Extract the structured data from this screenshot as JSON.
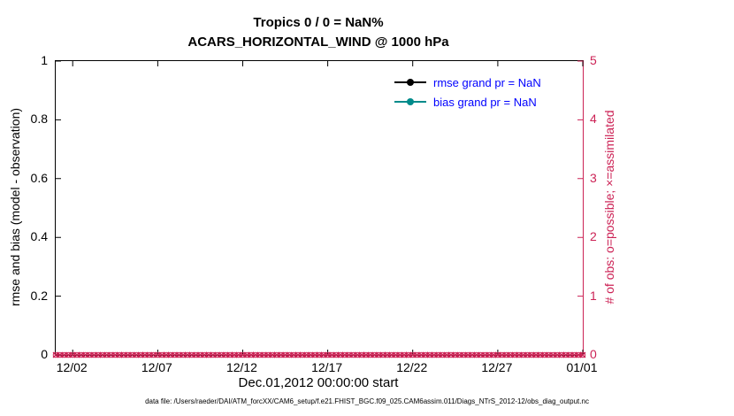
{
  "figure": {
    "title_line1": "Tropics 0 / 0 = NaN%",
    "title_line2": "ACARS_HORIZONTAL_WIND @ 1000 hPa",
    "xlabel": "Dec.01,2012 00:00:00 start",
    "ylabel_left": "rmse and bias (model - observation)",
    "ylabel_right": "# of obs: o=possible; ×=assimilated",
    "caption": "data file: /Users/raeder/DAI/ATM_forcXX/CAM6_setup/f.e21.FHIST_BGC.f09_025.CAM6assim.011/Diags_NTrS_2012-12/obs_diag_output.nc"
  },
  "colors": {
    "magenta": "#cc2255",
    "teal": "#008b8b",
    "black": "#000000",
    "legend_text": "#0000ff"
  },
  "legend": {
    "text_color": "#0000ff",
    "items": [
      {
        "label": "rmse grand pr = NaN",
        "color": "#000000"
      },
      {
        "label": "bias grand pr = NaN",
        "color": "#008b8b"
      }
    ]
  },
  "chart_data": {
    "type": "line",
    "title": "Tropics 0 / 0 = NaN% — ACARS_HORIZONTAL_WIND @ 1000 hPa",
    "grid": false,
    "x_axis": {
      "label": "Dec.01,2012 00:00:00 start",
      "start": "Dec 01, 2012 00:00:00",
      "range_days": [
        0,
        31
      ],
      "tick_days": [
        1,
        6,
        11,
        16,
        21,
        26,
        31
      ],
      "tick_labels": [
        "12/02",
        "12/07",
        "12/12",
        "12/17",
        "12/22",
        "12/27",
        "01/01"
      ]
    },
    "y_left": {
      "label": "rmse and bias (model - observation)",
      "range": [
        0,
        1
      ],
      "ticks": [
        0,
        0.2,
        0.4,
        0.6,
        0.8,
        1
      ],
      "tick_labels": [
        "0",
        "0.2",
        "0.4",
        "0.6",
        "0.8",
        "1"
      ]
    },
    "y_right": {
      "label": "# of obs: o=possible; ×=assimilated",
      "range": [
        0,
        5
      ],
      "ticks": [
        0,
        1,
        2,
        3,
        4,
        5
      ],
      "tick_labels": [
        "0",
        "1",
        "2",
        "3",
        "4",
        "5"
      ],
      "color": "#cc2255"
    },
    "series": [
      {
        "name": "rmse",
        "axis": "left",
        "color": "#000000",
        "grand_prior": "NaN",
        "values": "NaN (no data plotted)"
      },
      {
        "name": "bias",
        "axis": "left",
        "color": "#008b8b",
        "grand_prior": "NaN",
        "values": "NaN (no data plotted)"
      },
      {
        "name": "obs_possible",
        "axis": "right",
        "marker": "o",
        "color": "#cc2255",
        "constant_value": 0,
        "n_points": 125
      },
      {
        "name": "obs_assimilated",
        "axis": "right",
        "marker": "x",
        "color": "#cc2255",
        "constant_value": 0,
        "n_points": 125
      }
    ]
  }
}
